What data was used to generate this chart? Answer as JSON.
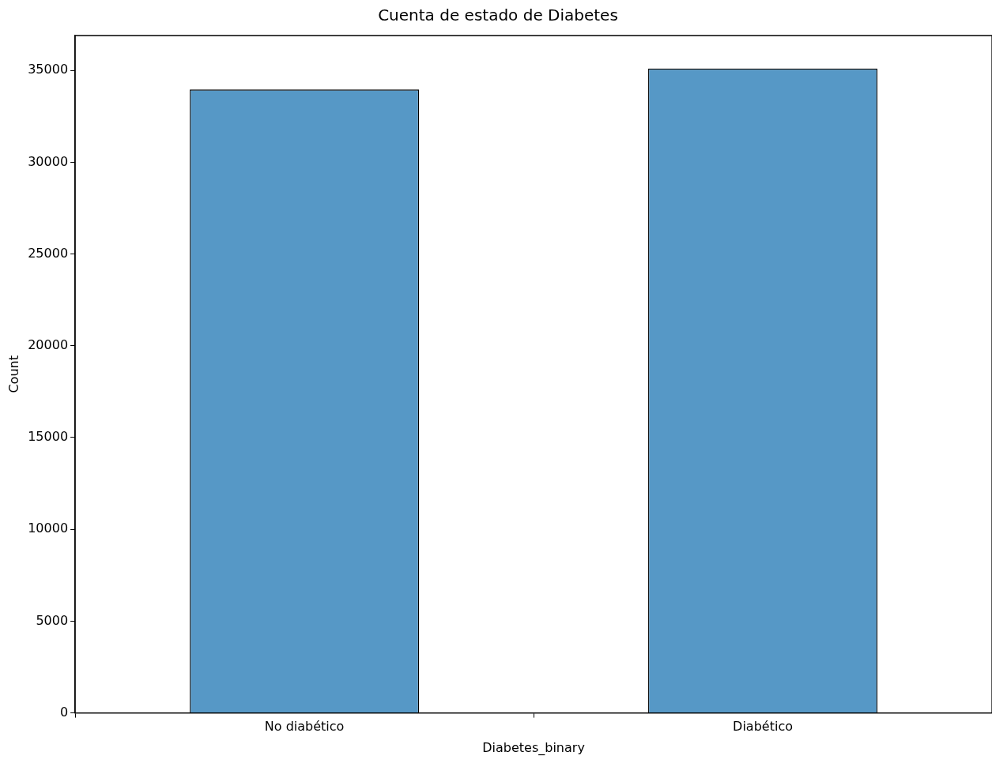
{
  "chart_data": {
    "type": "bar",
    "title": "Cuenta de estado de Diabetes",
    "xlabel": "Diabetes_binary",
    "ylabel": "Count",
    "categories": [
      "No diabético",
      "Diabético"
    ],
    "values": [
      33960,
      35100
    ],
    "color": "#5698c6",
    "ylim": [
      0,
      36900
    ],
    "yticks": [
      0,
      5000,
      10000,
      15000,
      20000,
      25000,
      30000,
      35000
    ],
    "grid": false,
    "legend": false
  }
}
